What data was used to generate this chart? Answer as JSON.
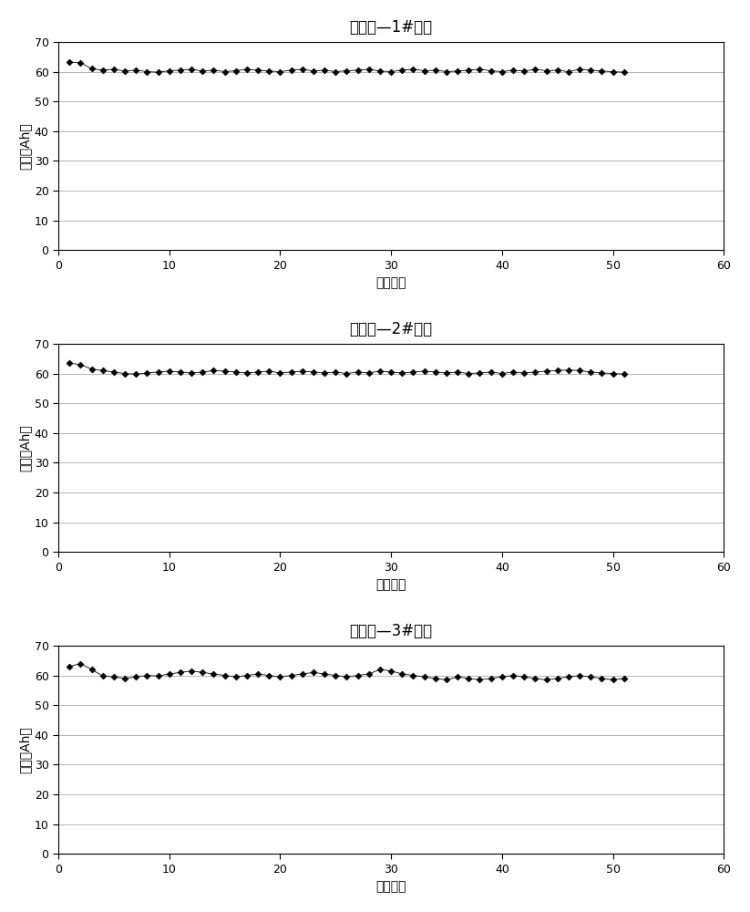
{
  "titles": [
    "对比例—1#电池",
    "对比例—2#电池",
    "对比例—3#电池"
  ],
  "xlabel": "循环次数",
  "ylabel": "容量（Ah）",
  "xlim": [
    0,
    60
  ],
  "ylim": [
    0,
    70
  ],
  "xticks": [
    0,
    10,
    20,
    30,
    40,
    50,
    60
  ],
  "yticks": [
    0,
    10,
    20,
    30,
    40,
    50,
    60,
    70
  ],
  "marker": "D",
  "marker_size": 3.5,
  "line_color": "#000000",
  "bg_color": "#ffffff",
  "title_fontsize": 12,
  "label_fontsize": 10,
  "tick_fontsize": 9,
  "chart1_y": [
    63.2,
    63.0,
    61.0,
    60.5,
    60.8,
    60.2,
    60.5,
    60.0,
    59.8,
    60.3,
    60.5,
    60.8,
    60.2,
    60.5,
    60.0,
    60.3,
    60.8,
    60.5,
    60.2,
    60.0,
    60.5,
    60.8,
    60.2,
    60.5,
    60.0,
    60.3,
    60.5,
    60.8,
    60.2,
    60.0,
    60.5,
    60.8,
    60.3,
    60.5,
    60.0,
    60.2,
    60.5,
    60.8,
    60.3,
    60.0,
    60.5,
    60.2,
    60.8,
    60.3,
    60.5,
    60.0,
    60.8,
    60.5,
    60.2,
    60.0,
    59.8
  ],
  "chart2_y": [
    63.5,
    63.0,
    61.5,
    61.0,
    60.5,
    60.0,
    59.8,
    60.2,
    60.5,
    60.8,
    60.5,
    60.2,
    60.5,
    61.0,
    60.8,
    60.5,
    60.2,
    60.5,
    60.8,
    60.2,
    60.5,
    60.8,
    60.5,
    60.2,
    60.5,
    60.0,
    60.5,
    60.2,
    60.8,
    60.5,
    60.2,
    60.5,
    60.8,
    60.5,
    60.2,
    60.5,
    60.0,
    60.2,
    60.5,
    60.0,
    60.5,
    60.2,
    60.5,
    60.8,
    61.0,
    61.2,
    61.0,
    60.5,
    60.2,
    60.0,
    59.8
  ],
  "chart3_y": [
    63.0,
    64.0,
    62.0,
    59.8,
    59.5,
    59.0,
    59.5,
    60.0,
    59.8,
    60.5,
    61.0,
    61.5,
    61.0,
    60.5,
    60.0,
    59.5,
    60.0,
    60.5,
    60.0,
    59.5,
    60.0,
    60.5,
    61.0,
    60.5,
    60.0,
    59.5,
    60.0,
    60.5,
    62.0,
    61.5,
    60.5,
    60.0,
    59.5,
    59.0,
    58.5,
    59.5,
    59.0,
    58.5,
    59.0,
    59.5,
    60.0,
    59.5,
    59.0,
    58.5,
    59.0,
    59.5,
    60.0,
    59.5,
    59.0,
    58.5,
    59.0
  ]
}
